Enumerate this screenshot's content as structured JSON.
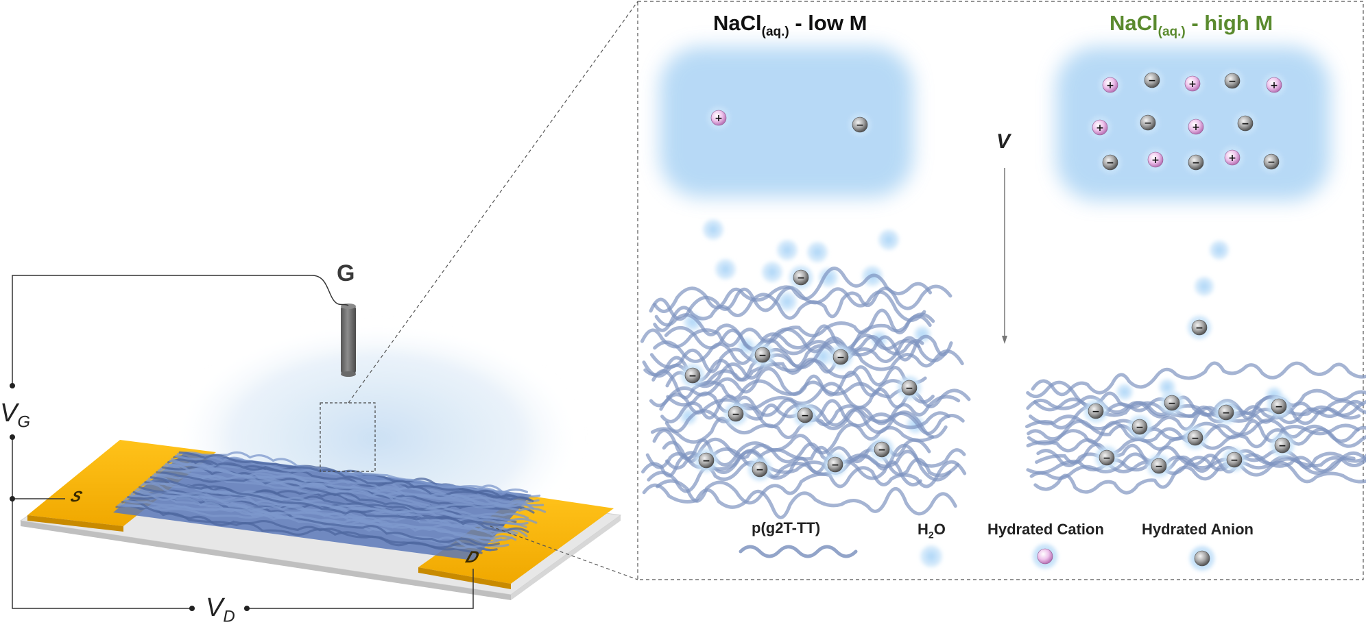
{
  "panel_left": {
    "title": "NaCl",
    "title_sub": "(aq.)",
    "title_suffix": " - low M"
  },
  "panel_right": {
    "title": "NaCl",
    "title_sub": "(aq.)",
    "title_suffix": " - high M",
    "title_color": "#5a8a2e"
  },
  "arrow_label": "V",
  "legend": {
    "polymer": "p(g2T-TT)",
    "water": "H",
    "water_sub": "2",
    "water_suffix": "O",
    "cation": "Hydrated Cation",
    "anion": "Hydrated Anion"
  },
  "device": {
    "gate": "G",
    "vg": "V",
    "vg_sub": "G",
    "vd": "V",
    "vd_sub": "D",
    "source": "S",
    "drain": "D"
  },
  "ion_symbols": {
    "cation": "+",
    "anion": "−"
  },
  "colors": {
    "gold": "#f5b800",
    "water": "#9fcdf3",
    "polymer": "#7088b8",
    "cation": "#e7b4e6",
    "anion": "#9a9a9a",
    "accent_green": "#5a8a2e"
  }
}
